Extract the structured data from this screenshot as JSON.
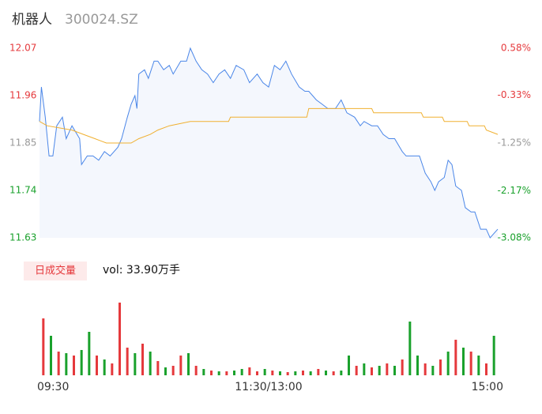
{
  "header": {
    "title": "机器人",
    "code": "300024.SZ"
  },
  "volume_tab": "日成交量",
  "volume_label": "vol: 33.90万手",
  "chart_data": [
    {
      "type": "line",
      "xlim": [
        0,
        240
      ],
      "ylim": [
        11.63,
        12.07
      ],
      "yticks": [
        12.07,
        11.96,
        11.85,
        11.74,
        11.63
      ],
      "ytick_colors": [
        "#e5393c",
        "#e5393c",
        "#999999",
        "#1aa12c",
        "#1aa12c"
      ],
      "y2lim": [
        -3.08,
        0.58
      ],
      "y2ticks": [
        {
          "value": 0.58,
          "label": "0.58%"
        },
        {
          "value": -0.33,
          "label": "-0.33%"
        },
        {
          "value": -1.25,
          "label": "-1.25%"
        },
        {
          "value": -2.17,
          "label": "-2.17%"
        },
        {
          "value": -3.08,
          "label": "-3.08%"
        }
      ],
      "y2tick_colors": [
        "#e5393c",
        "#e5393c",
        "#999999",
        "#1aa12c",
        "#1aa12c"
      ],
      "series": [
        {
          "color": "#4a86e8",
          "x": [
            0,
            1,
            3,
            5,
            7,
            9,
            12,
            14,
            17,
            21,
            22,
            25,
            28,
            31,
            34,
            37,
            41,
            43,
            46,
            48,
            50,
            51,
            52,
            55,
            57,
            60,
            62,
            65,
            68,
            70,
            74,
            77,
            79,
            82,
            85,
            88,
            91,
            94,
            97,
            100,
            103,
            107,
            110,
            114,
            117,
            120,
            123,
            126,
            129,
            132,
            136,
            139,
            141,
            145,
            148,
            151,
            155,
            158,
            161,
            165,
            168,
            170,
            174,
            177,
            180,
            183,
            186,
            190,
            192,
            195,
            199,
            202,
            205,
            207,
            209,
            212,
            214,
            216,
            218,
            221,
            223,
            226,
            228,
            231,
            234,
            236,
            240
          ],
          "values": [
            11.9,
            11.98,
            11.91,
            11.82,
            11.82,
            11.89,
            11.91,
            11.86,
            11.89,
            11.86,
            11.8,
            11.82,
            11.82,
            11.81,
            11.83,
            11.82,
            11.84,
            11.86,
            11.91,
            11.94,
            11.96,
            11.93,
            12.01,
            12.02,
            12.0,
            12.04,
            12.04,
            12.02,
            12.03,
            12.01,
            12.04,
            12.04,
            12.07,
            12.04,
            12.02,
            12.01,
            11.99,
            12.01,
            12.02,
            12.0,
            12.03,
            12.02,
            11.99,
            12.01,
            11.99,
            11.98,
            12.03,
            12.02,
            12.04,
            12.01,
            11.98,
            11.97,
            11.97,
            11.95,
            11.94,
            11.93,
            11.93,
            11.95,
            11.92,
            11.91,
            11.89,
            11.9,
            11.89,
            11.89,
            11.87,
            11.86,
            11.86,
            11.83,
            11.82,
            11.82,
            11.82,
            11.78,
            11.76,
            11.74,
            11.76,
            11.77,
            11.81,
            11.8,
            11.75,
            11.74,
            11.7,
            11.69,
            11.69,
            11.65,
            11.65,
            11.63,
            11.65
          ]
        },
        {
          "color": "#f0b030",
          "x": [
            0,
            4,
            17,
            23,
            29,
            35,
            48,
            52,
            58,
            62,
            68,
            79,
            99,
            100,
            140,
            141,
            174,
            175,
            200,
            201,
            211,
            212,
            224,
            225,
            233,
            234,
            240
          ],
          "values": [
            11.9,
            11.89,
            11.88,
            11.87,
            11.86,
            11.85,
            11.85,
            11.86,
            11.87,
            11.88,
            11.89,
            11.9,
            11.9,
            11.91,
            11.91,
            11.93,
            11.93,
            11.92,
            11.92,
            11.91,
            11.91,
            11.9,
            11.9,
            11.89,
            11.89,
            11.88,
            11.87
          ]
        }
      ]
    },
    {
      "type": "bar",
      "xlim": [
        0,
        240
      ],
      "ylim": [
        0,
        95
      ],
      "xticks": [
        {
          "value": 0,
          "label": "09:30"
        },
        {
          "value": 120,
          "label": "11:30/13:00"
        },
        {
          "value": 240,
          "label": "15:00"
        }
      ],
      "x": [
        0,
        4,
        8,
        12,
        16,
        20,
        24,
        28,
        32,
        36,
        40,
        44,
        48,
        52,
        56,
        60,
        64,
        68,
        72,
        76,
        80,
        84,
        88,
        92,
        96,
        100,
        104,
        108,
        112,
        116,
        120,
        124,
        128,
        132,
        136,
        140,
        144,
        148,
        152,
        156,
        160,
        164,
        168,
        172,
        176,
        180,
        184,
        188,
        192,
        196,
        200,
        204,
        208,
        212,
        216,
        220,
        224,
        228,
        232,
        236
      ],
      "values": [
        72,
        50,
        30,
        28,
        25,
        32,
        55,
        25,
        20,
        15,
        92,
        35,
        28,
        40,
        30,
        18,
        10,
        12,
        25,
        28,
        12,
        8,
        6,
        5,
        5,
        6,
        8,
        10,
        5,
        8,
        6,
        5,
        4,
        5,
        6,
        5,
        8,
        6,
        5,
        6,
        25,
        12,
        15,
        10,
        12,
        15,
        12,
        20,
        68,
        25,
        15,
        12,
        20,
        30,
        45,
        35,
        30,
        25,
        15,
        50
      ],
      "colors": [
        "#e5393c",
        "#1aa12c",
        "#e5393c",
        "#1aa12c",
        "#e5393c",
        "#1aa12c",
        "#1aa12c",
        "#e5393c",
        "#1aa12c",
        "#e5393c",
        "#e5393c",
        "#e5393c",
        "#1aa12c",
        "#e5393c",
        "#1aa12c",
        "#e5393c",
        "#1aa12c",
        "#e5393c",
        "#e5393c",
        "#1aa12c",
        "#e5393c",
        "#1aa12c",
        "#e5393c",
        "#1aa12c",
        "#e5393c",
        "#1aa12c",
        "#1aa12c",
        "#e5393c",
        "#e5393c",
        "#1aa12c",
        "#e5393c",
        "#1aa12c",
        "#e5393c",
        "#1aa12c",
        "#e5393c",
        "#1aa12c",
        "#e5393c",
        "#1aa12c",
        "#e5393c",
        "#1aa12c",
        "#1aa12c",
        "#e5393c",
        "#1aa12c",
        "#e5393c",
        "#1aa12c",
        "#e5393c",
        "#1aa12c",
        "#e5393c",
        "#1aa12c",
        "#1aa12c",
        "#e5393c",
        "#1aa12c",
        "#e5393c",
        "#1aa12c",
        "#e5393c",
        "#1aa12c",
        "#e5393c",
        "#1aa12c",
        "#e5393c",
        "#1aa12c"
      ]
    }
  ]
}
